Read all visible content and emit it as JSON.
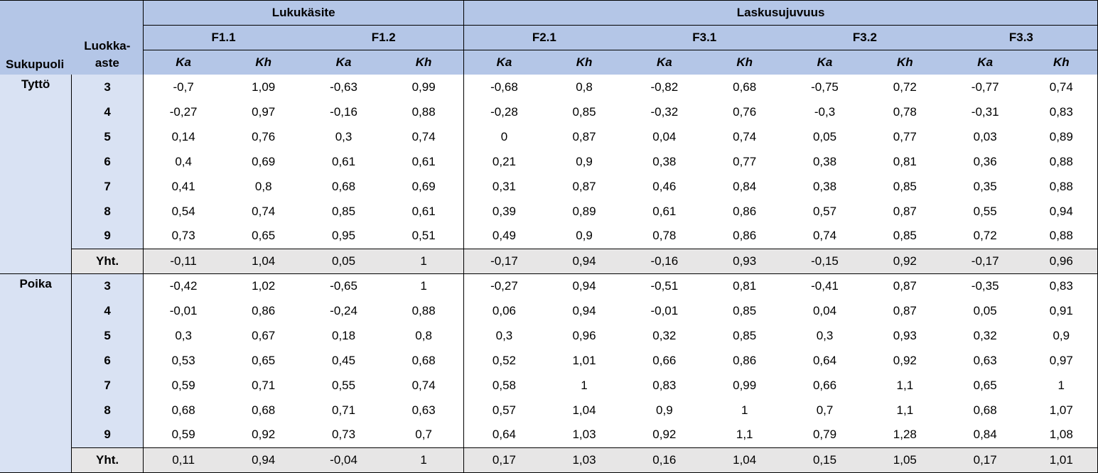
{
  "headers": {
    "sukupuoli": "Sukupuoli",
    "luokka_line1": "Luokka-",
    "luokka_line2": "aste",
    "group1": "Lukukäsite",
    "group2": "Laskusujuvuus",
    "factors": [
      "F1.1",
      "F1.2",
      "F2.1",
      "F3.1",
      "F3.2",
      "F3.3"
    ],
    "ka": "Ka",
    "kh": "Kh"
  },
  "groups": [
    {
      "label": "Tyttö",
      "rows": [
        {
          "grade": "3",
          "values": [
            "-0,7",
            "1,09",
            "-0,63",
            "0,99",
            "-0,68",
            "0,8",
            "-0,82",
            "0,68",
            "-0,75",
            "0,72",
            "-0,77",
            "0,74"
          ]
        },
        {
          "grade": "4",
          "values": [
            "-0,27",
            "0,97",
            "-0,16",
            "0,88",
            "-0,28",
            "0,85",
            "-0,32",
            "0,76",
            "-0,3",
            "0,78",
            "-0,31",
            "0,83"
          ]
        },
        {
          "grade": "5",
          "values": [
            "0,14",
            "0,76",
            "0,3",
            "0,74",
            "0",
            "0,87",
            "0,04",
            "0,74",
            "0,05",
            "0,77",
            "0,03",
            "0,89"
          ]
        },
        {
          "grade": "6",
          "values": [
            "0,4",
            "0,69",
            "0,61",
            "0,61",
            "0,21",
            "0,9",
            "0,38",
            "0,77",
            "0,38",
            "0,81",
            "0,36",
            "0,88"
          ]
        },
        {
          "grade": "7",
          "values": [
            "0,41",
            "0,8",
            "0,68",
            "0,69",
            "0,31",
            "0,87",
            "0,46",
            "0,84",
            "0,38",
            "0,85",
            "0,35",
            "0,88"
          ]
        },
        {
          "grade": "8",
          "values": [
            "0,54",
            "0,74",
            "0,85",
            "0,61",
            "0,39",
            "0,89",
            "0,61",
            "0,86",
            "0,57",
            "0,87",
            "0,55",
            "0,94"
          ]
        },
        {
          "grade": "9",
          "values": [
            "0,73",
            "0,65",
            "0,95",
            "0,51",
            "0,49",
            "0,9",
            "0,78",
            "0,86",
            "0,74",
            "0,85",
            "0,72",
            "0,88"
          ]
        }
      ],
      "total": {
        "grade": "Yht.",
        "values": [
          "-0,11",
          "1,04",
          "0,05",
          "1",
          "-0,17",
          "0,94",
          "-0,16",
          "0,93",
          "-0,15",
          "0,92",
          "-0,17",
          "0,96"
        ]
      }
    },
    {
      "label": "Poika",
      "rows": [
        {
          "grade": "3",
          "values": [
            "-0,42",
            "1,02",
            "-0,65",
            "1",
            "-0,27",
            "0,94",
            "-0,51",
            "0,81",
            "-0,41",
            "0,87",
            "-0,35",
            "0,83"
          ]
        },
        {
          "grade": "4",
          "values": [
            "-0,01",
            "0,86",
            "-0,24",
            "0,88",
            "0,06",
            "0,94",
            "-0,01",
            "0,85",
            "0,04",
            "0,87",
            "0,05",
            "0,91"
          ]
        },
        {
          "grade": "5",
          "values": [
            "0,3",
            "0,67",
            "0,18",
            "0,8",
            "0,3",
            "0,96",
            "0,32",
            "0,85",
            "0,3",
            "0,93",
            "0,32",
            "0,9"
          ]
        },
        {
          "grade": "6",
          "values": [
            "0,53",
            "0,65",
            "0,45",
            "0,68",
            "0,52",
            "1,01",
            "0,66",
            "0,86",
            "0,64",
            "0,92",
            "0,63",
            "0,97"
          ]
        },
        {
          "grade": "7",
          "values": [
            "0,59",
            "0,71",
            "0,55",
            "0,74",
            "0,58",
            "1",
            "0,83",
            "0,99",
            "0,66",
            "1,1",
            "0,65",
            "1"
          ]
        },
        {
          "grade": "8",
          "values": [
            "0,68",
            "0,68",
            "0,71",
            "0,63",
            "0,57",
            "1,04",
            "0,9",
            "1",
            "0,7",
            "1,1",
            "0,68",
            "1,07"
          ]
        },
        {
          "grade": "9",
          "values": [
            "0,59",
            "0,92",
            "0,73",
            "0,7",
            "0,64",
            "1,03",
            "0,92",
            "1,1",
            "0,79",
            "1,28",
            "0,84",
            "1,08"
          ]
        }
      ],
      "total": {
        "grade": "Yht.",
        "values": [
          "0,11",
          "0,94",
          "-0,04",
          "1",
          "0,17",
          "1,03",
          "0,16",
          "1,04",
          "0,15",
          "1,05",
          "0,17",
          "1,01"
        ]
      }
    }
  ]
}
